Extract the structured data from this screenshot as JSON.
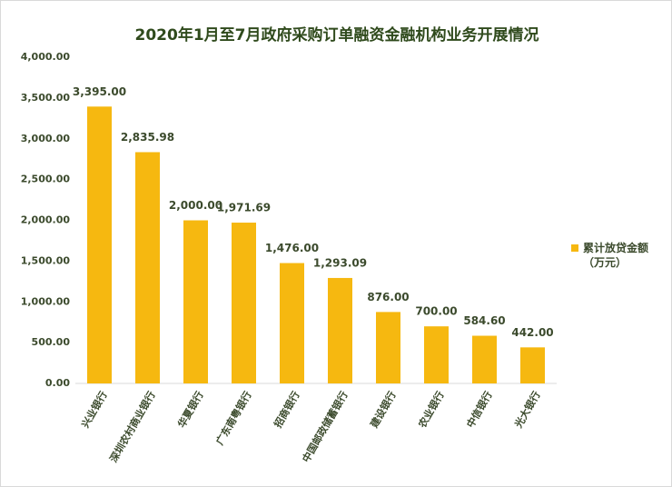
{
  "chart_data": {
    "type": "bar",
    "title": "2020年1月至7月政府采购订单融资金融机构业务开展情况",
    "categories": [
      "兴业银行",
      "深圳农村商业银行",
      "华夏银行",
      "广东南粤银行",
      "招商银行",
      "中国邮政储蓄银行",
      "建设银行",
      "农业银行",
      "中信银行",
      "光大银行"
    ],
    "series": [
      {
        "name": "累计放贷金额（万元）",
        "color": "#f6b810",
        "values": [
          3395,
          2835.98,
          2000,
          1971.69,
          1476,
          1293.09,
          876,
          700,
          584.6,
          442
        ],
        "value_labels": [
          "3,395.00",
          "2,835.98",
          "2,000.00",
          "1,971.69",
          "1,476.00",
          "1,293.09",
          "876.00",
          "700.00",
          "584.60",
          "442.00"
        ]
      }
    ],
    "ylim": [
      0,
      4000
    ],
    "yticks": [
      {
        "value": 0,
        "label": "0.00"
      },
      {
        "value": 500,
        "label": "500.00"
      },
      {
        "value": 1000,
        "label": "1,000.00"
      },
      {
        "value": 1500,
        "label": "1,500.00"
      },
      {
        "value": 2000,
        "label": "2,000.00"
      },
      {
        "value": 2500,
        "label": "2,500.00"
      },
      {
        "value": 3000,
        "label": "3,000.00"
      },
      {
        "value": 3500,
        "label": "3,500.00"
      },
      {
        "value": 4000,
        "label": "4,000.00"
      }
    ],
    "grid": false,
    "legend": "right"
  }
}
